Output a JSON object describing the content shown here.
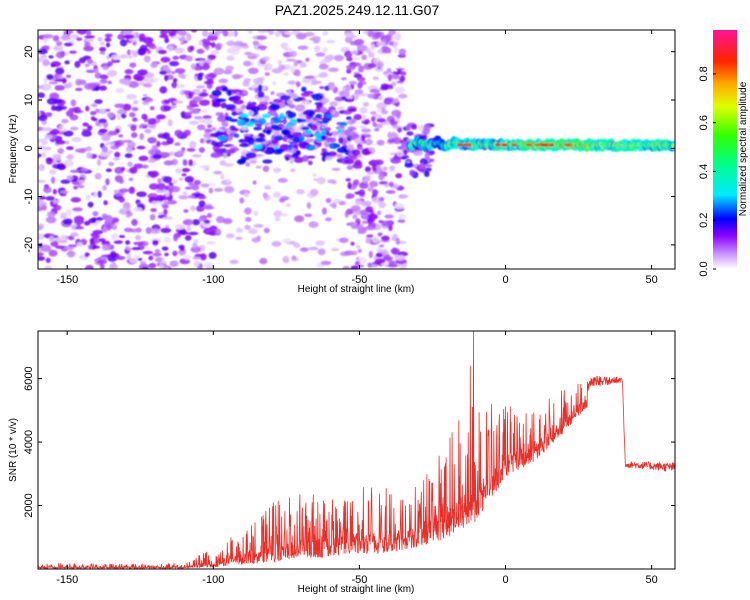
{
  "title": "PAZ1.2025.249.12.11.G07",
  "chart_data": [
    {
      "type": "heatmap",
      "xlabel": "Height of straight line (km)",
      "ylabel": "Frequency (Hz)",
      "xlim": [
        -160,
        58
      ],
      "ylim": [
        -25,
        24.5
      ],
      "xticks": [
        -150,
        -100,
        -50,
        0,
        50
      ],
      "yticks": [
        -20,
        -10,
        0,
        10,
        20
      ],
      "colorbar": {
        "label": "Normalized spectral amplitude",
        "ticks": [
          0.0,
          0.2,
          0.4,
          0.6,
          0.8
        ],
        "tick_labels": [
          "0.0",
          "0.2",
          "0.4",
          "0.6",
          "0.8"
        ],
        "range": [
          0,
          0.98
        ]
      },
      "regions": [
        {
          "x": [
            -160,
            -100
          ],
          "f": [
            -25,
            24.5
          ],
          "amplitude": "0.0-0.15 (scattered noise)"
        },
        {
          "x": [
            -100,
            -52
          ],
          "f": [
            -2,
            12
          ],
          "amplitude": "0.1-0.3 (patchy band centred ~3 Hz)"
        },
        {
          "x": [
            -52,
            -35
          ],
          "f": [
            -25,
            24.5
          ],
          "amplitude": "0.0-0.15 (scattered noise)"
        },
        {
          "x": [
            -35,
            58
          ],
          "f": [
            -1,
            2
          ],
          "amplitude": "0.3-0.95 (narrow line near 0.5 Hz)"
        }
      ]
    },
    {
      "type": "line",
      "xlabel": "Height of straight line (km)",
      "ylabel": "SNR (10 * v/v)",
      "xlim": [
        -160,
        58
      ],
      "ylim": [
        0,
        7500
      ],
      "xticks": [
        -150,
        -100,
        -50,
        0,
        50
      ],
      "yticks": [
        2000,
        4000,
        6000
      ],
      "color": "#e8302a",
      "envelope": [
        {
          "x": -160,
          "lo": 20,
          "hi": 180
        },
        {
          "x": -110,
          "lo": 20,
          "hi": 180
        },
        {
          "x": -100,
          "lo": 50,
          "hi": 700
        },
        {
          "x": -90,
          "lo": 150,
          "hi": 1300
        },
        {
          "x": -80,
          "lo": 200,
          "hi": 2100
        },
        {
          "x": -70,
          "lo": 300,
          "hi": 2400
        },
        {
          "x": -60,
          "lo": 400,
          "hi": 2300
        },
        {
          "x": -50,
          "lo": 500,
          "hi": 2600
        },
        {
          "x": -40,
          "lo": 500,
          "hi": 2600
        },
        {
          "x": -30,
          "lo": 700,
          "hi": 2700
        },
        {
          "x": -22,
          "lo": 900,
          "hi": 4000
        },
        {
          "x": -15,
          "lo": 1200,
          "hi": 4900
        },
        {
          "x": -10,
          "lo": 1500,
          "hi": 5200
        },
        {
          "x": 0,
          "lo": 2900,
          "hi": 5200
        },
        {
          "x": 10,
          "lo": 3400,
          "hi": 5300
        },
        {
          "x": 20,
          "lo": 4300,
          "hi": 5700
        },
        {
          "x": 30,
          "lo": 5300,
          "hi": 6100
        },
        {
          "x": 40,
          "lo": 5700,
          "hi": 6050
        },
        {
          "x": 41,
          "lo": 3200,
          "hi": 3400
        },
        {
          "x": 58,
          "lo": 3050,
          "hi": 3350
        }
      ],
      "peaks": [
        {
          "x": -11,
          "y": 7500
        },
        {
          "x": -12,
          "y": 6400
        }
      ]
    }
  ]
}
